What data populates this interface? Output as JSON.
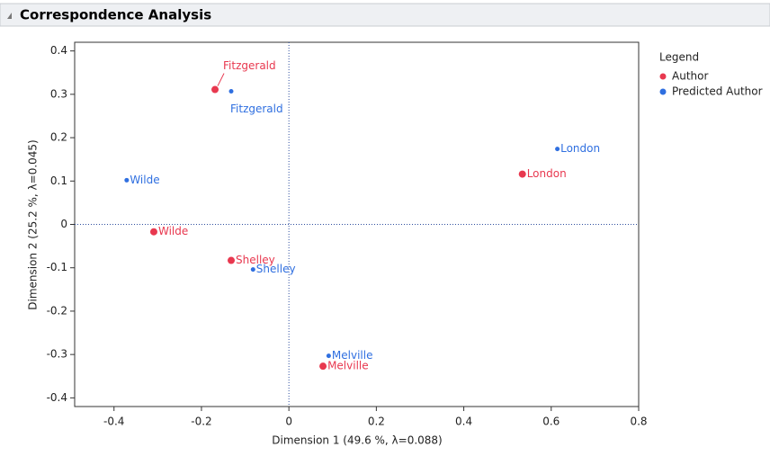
{
  "chart_data": {
    "type": "scatter",
    "title": "Correspondence Analysis",
    "x_label": "Dimension 1  (49.6 %, λ=0.088)",
    "y_label": "Dimension 2  (25.2 %, λ=0.045)",
    "legend_title": "Legend",
    "xlim": [
      -0.49,
      0.8
    ],
    "ylim": [
      -0.42,
      0.42
    ],
    "xticks": [
      -0.4,
      -0.2,
      0,
      0.2,
      0.4,
      0.6,
      0.8
    ],
    "yticks": [
      0.4,
      0.3,
      0.2,
      0.1,
      0,
      -0.1,
      -0.2,
      -0.3,
      -0.4
    ],
    "series": [
      {
        "name": "Author",
        "color": "#e8384f",
        "labels": [
          "Fitzgerald",
          "London",
          "Wilde",
          "Shelley",
          "Melville"
        ],
        "x": [
          -0.169,
          0.534,
          -0.309,
          -0.132,
          0.078
        ],
        "values": [
          0.311,
          0.116,
          -0.017,
          -0.083,
          -0.327
        ]
      },
      {
        "name": "Predicted Author",
        "color": "#2f6fe0",
        "labels": [
          "Fitzgerald",
          "London",
          "Wilde",
          "Shelley",
          "Melville"
        ],
        "x": [
          -0.132,
          0.614,
          -0.371,
          -0.082,
          0.091
        ],
        "values": [
          0.307,
          0.174,
          0.102,
          -0.104,
          -0.303
        ]
      }
    ]
  }
}
